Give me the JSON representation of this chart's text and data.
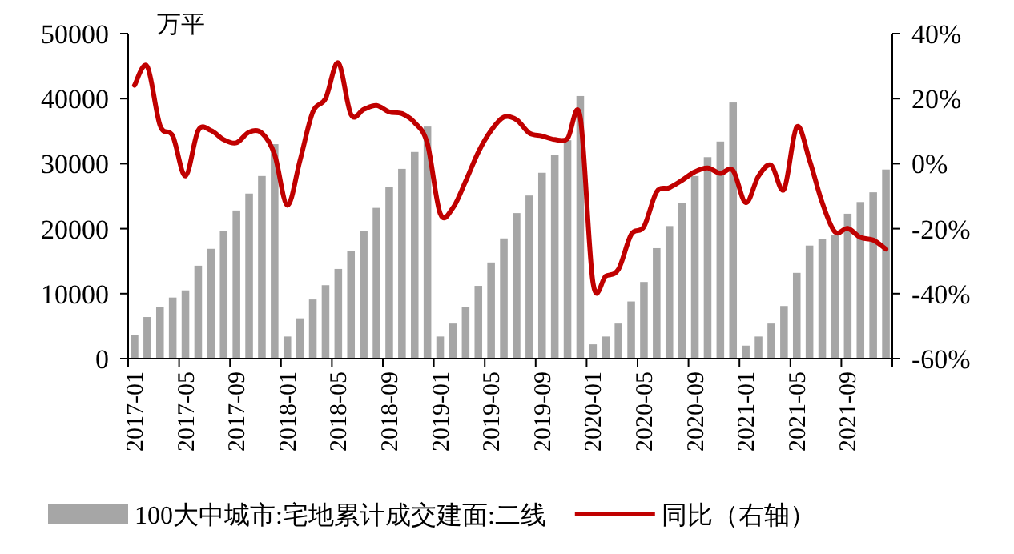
{
  "chart_data": {
    "type": "bar",
    "ylabel": "万平",
    "categories": [
      "2017-01",
      null,
      null,
      null,
      "2017-05",
      null,
      null,
      null,
      "2017-09",
      null,
      null,
      null,
      "2018-01",
      null,
      null,
      null,
      "2018-05",
      null,
      null,
      null,
      "2018-09",
      null,
      null,
      null,
      "2019-01",
      null,
      null,
      null,
      "2019-05",
      null,
      null,
      null,
      "2019-09",
      null,
      null,
      null,
      "2020-01",
      null,
      null,
      null,
      "2020-05",
      null,
      null,
      null,
      "2020-09",
      null,
      null,
      null,
      "2021-01",
      null,
      null,
      null,
      "2021-05",
      null,
      null,
      null,
      "2021-09",
      null,
      null,
      null
    ],
    "series": [
      {
        "name": "100大中城市:宅地累计成交建面:二线",
        "color": "#a6a6a6",
        "values": [
          3600,
          6400,
          7900,
          9400,
          10500,
          14300,
          16900,
          19700,
          22800,
          25400,
          28100,
          33000,
          3400,
          6200,
          9100,
          11300,
          13800,
          16600,
          19700,
          23200,
          26400,
          29200,
          31800,
          35700,
          3400,
          5400,
          7900,
          11200,
          14800,
          18500,
          22400,
          25100,
          28600,
          31400,
          33600,
          40400,
          2200,
          3400,
          5400,
          8800,
          11800,
          17000,
          20400,
          23900,
          28100,
          31000,
          33400,
          39400,
          2000,
          3400,
          5400,
          8100,
          13200,
          17400,
          18400,
          19000,
          22300,
          24100,
          25600,
          29100
        ]
      },
      {
        "name": "同比（右轴）",
        "type": "line",
        "axis": "y2",
        "color": "#c00000",
        "values": [
          24.1,
          29.9,
          11.8,
          8.5,
          -3.8,
          10.2,
          10.2,
          7.4,
          6.4,
          9.7,
          9.4,
          2.8,
          -12.8,
          1.1,
          15.9,
          20.0,
          31.0,
          15.1,
          16.7,
          17.9,
          15.9,
          15.4,
          12.6,
          6.1,
          -15.3,
          -13.6,
          -5.4,
          3.6,
          10.2,
          14.3,
          13.5,
          9.4,
          8.5,
          7.4,
          7.7,
          14.3,
          -36.6,
          -34.6,
          -32.5,
          -21.8,
          -19.4,
          -8.7,
          -7.4,
          -5.1,
          -2.5,
          -1.3,
          -3.0,
          -2.1,
          -12.0,
          -3.8,
          -0.5,
          -7.9,
          11.3,
          1.1,
          -12.0,
          -21.0,
          -19.9,
          -22.7,
          -23.5,
          -26.3
        ]
      }
    ],
    "ylim": [
      0,
      50000
    ],
    "yticks": [
      0,
      10000,
      20000,
      30000,
      40000,
      50000
    ],
    "y2lim": [
      -60,
      40
    ],
    "y2ticks": [
      {
        "value": -60,
        "label": "-60%"
      },
      {
        "value": -40,
        "label": "-40%"
      },
      {
        "value": -20,
        "label": "-20%"
      },
      {
        "value": 0,
        "label": "0%"
      },
      {
        "value": 20,
        "label": "20%"
      },
      {
        "value": 40,
        "label": "40%"
      }
    ],
    "grid": false,
    "legend": "bottom",
    "marker": "none",
    "line_style": "solid"
  }
}
